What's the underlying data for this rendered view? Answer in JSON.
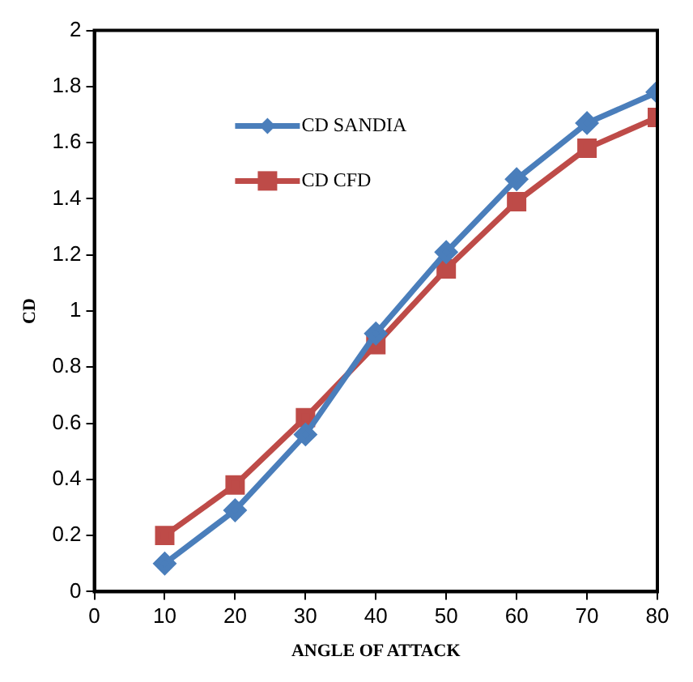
{
  "chart_data": {
    "type": "line",
    "xlabel": "ANGLE OF ATTACK",
    "ylabel": "CD",
    "x": [
      10,
      20,
      30,
      40,
      50,
      60,
      70,
      80
    ],
    "series": [
      {
        "name": "CD SANDIA",
        "color": "#4a7ebb",
        "marker": "diamond",
        "values": [
          0.1,
          0.29,
          0.56,
          0.92,
          1.21,
          1.47,
          1.67,
          1.78
        ]
      },
      {
        "name": "CD CFD",
        "color": "#be4b48",
        "marker": "square",
        "values": [
          0.2,
          0.38,
          0.62,
          0.88,
          1.15,
          1.39,
          1.58,
          1.69
        ]
      }
    ],
    "xlim": [
      0,
      80
    ],
    "xticks": [
      0,
      10,
      20,
      30,
      40,
      50,
      60,
      70,
      80
    ],
    "ylim": [
      0,
      2
    ],
    "yticks": [
      0,
      0.2,
      0.4,
      0.6,
      0.8,
      1,
      1.2,
      1.4,
      1.6,
      1.8,
      2
    ],
    "grid": false,
    "legend": "top left",
    "line_style": "solid"
  }
}
